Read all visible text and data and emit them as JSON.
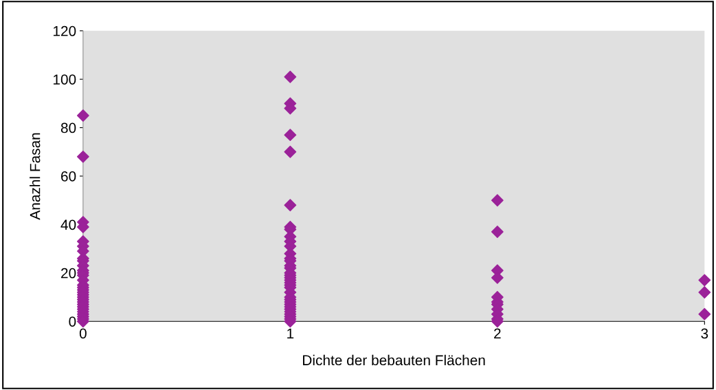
{
  "chart_data": {
    "type": "scatter",
    "xlabel": "Dichte der bebauten Flächen",
    "ylabel": "Anazhl Fasan",
    "xlim": [
      0,
      3
    ],
    "xticks": [
      0,
      1,
      2,
      3
    ],
    "ylim": [
      0,
      120
    ],
    "yticks": [
      0,
      20,
      40,
      60,
      80,
      100,
      120
    ],
    "grid": false,
    "marker": "diamond",
    "series": [
      {
        "color": "#9b2299",
        "x": [
          0,
          0,
          0,
          0,
          0,
          0,
          0,
          0,
          0,
          0,
          0,
          0,
          0,
          0,
          0,
          0,
          0,
          0,
          0,
          0,
          0,
          0,
          0,
          0,
          0,
          0,
          0,
          0,
          0,
          0,
          1,
          1,
          1,
          1,
          1,
          1,
          1,
          1,
          1,
          1,
          1,
          1,
          1,
          1,
          1,
          1,
          1,
          1,
          1,
          1,
          1,
          1,
          1,
          1,
          1,
          1,
          1,
          1,
          1,
          1,
          1,
          1,
          1,
          1,
          1,
          2,
          2,
          2,
          2,
          2,
          2,
          2,
          2,
          2,
          2,
          2,
          3,
          3,
          3
        ],
        "values": [
          85,
          68,
          41,
          39,
          33,
          31,
          29,
          26,
          25,
          23,
          21,
          20,
          19,
          17,
          15,
          14,
          13,
          12,
          11,
          10,
          9,
          8,
          7,
          6,
          5,
          4,
          3,
          2,
          1,
          0,
          101,
          90,
          88,
          77,
          70,
          48,
          39,
          38,
          35,
          33,
          31,
          28,
          26,
          25,
          23,
          22,
          20,
          19,
          18,
          17,
          16,
          15,
          14,
          12,
          10,
          9,
          8,
          7,
          6,
          5,
          4,
          3,
          2,
          1,
          0,
          50,
          37,
          21,
          18,
          10,
          8,
          7,
          5,
          3,
          1,
          0,
          17,
          12,
          3
        ]
      }
    ]
  }
}
